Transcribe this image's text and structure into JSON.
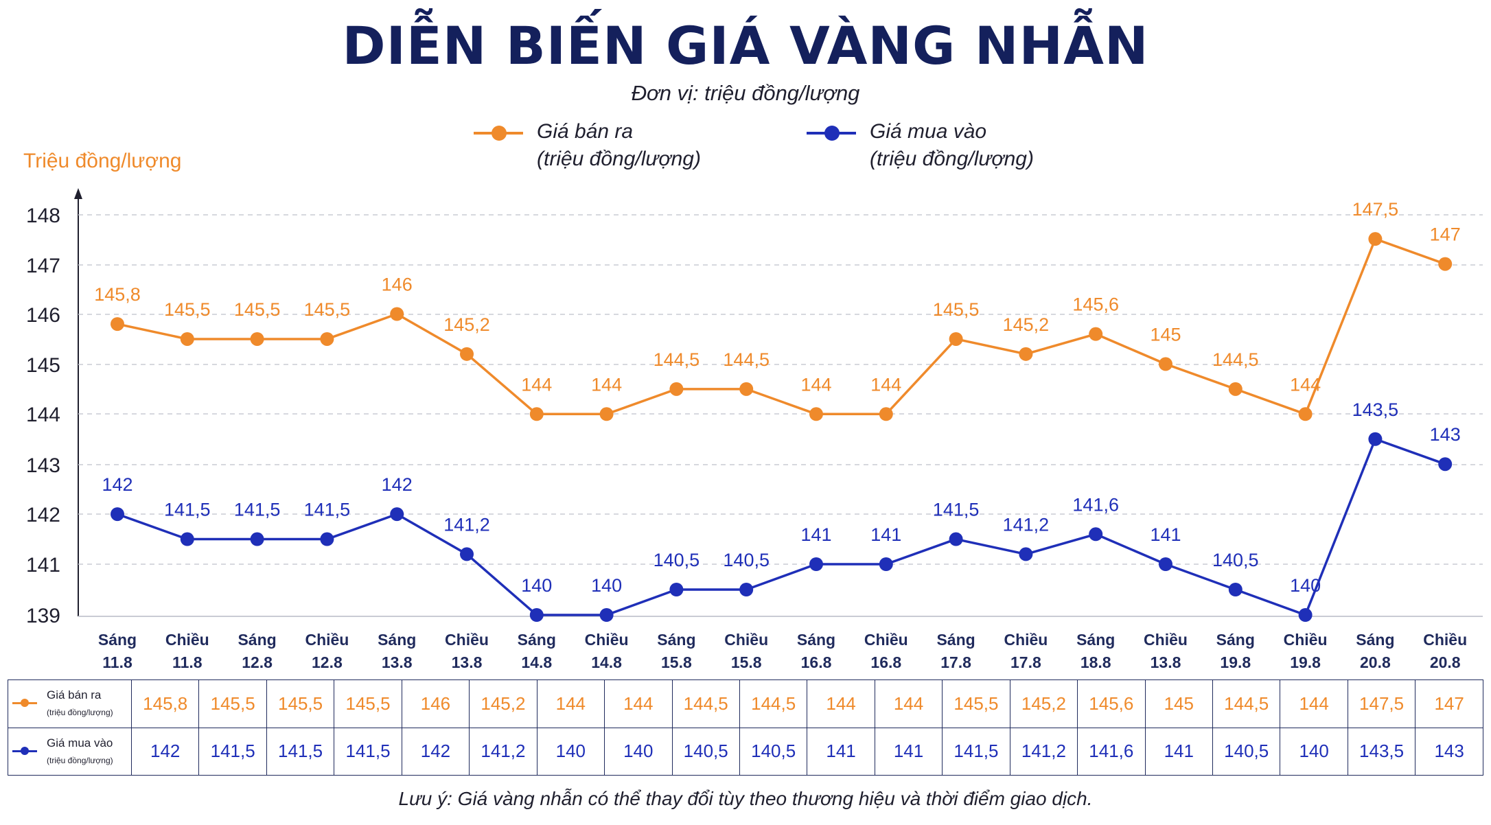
{
  "title": "DIỄN BIẾN GIÁ VÀNG NHẪN",
  "subtitle": "Đơn vị: triệu đồng/lượng",
  "note": "Lưu ý: Giá vàng nhẫn có thể thay đổi tùy theo thương hiệu và thời điểm giao dịch.",
  "legend": {
    "sell": {
      "name": "Giá bán ra",
      "unit": "(triệu đồng/lượng)"
    },
    "buy": {
      "name": "Giá mua vào",
      "unit": "(triệu đồng/lượng)"
    }
  },
  "colors": {
    "sell": "#ef8a2b",
    "buy": "#1f2fb8",
    "title": "#14205c"
  },
  "chart_data": {
    "type": "line",
    "ylabel": "Triệu đồng/lượng",
    "yticks": [
      148,
      147,
      146,
      145,
      144,
      143,
      142,
      141,
      139
    ],
    "ylim": [
      139,
      148
    ],
    "grid": true,
    "legend_position": "top",
    "categories": [
      [
        "Sáng",
        "11.8"
      ],
      [
        "Chiều",
        "11.8"
      ],
      [
        "Sáng",
        "12.8"
      ],
      [
        "Chiều",
        "12.8"
      ],
      [
        "Sáng",
        "13.8"
      ],
      [
        "Chiều",
        "13.8"
      ],
      [
        "Sáng",
        "14.8"
      ],
      [
        "Chiều",
        "14.8"
      ],
      [
        "Sáng",
        "15.8"
      ],
      [
        "Chiều",
        "15.8"
      ],
      [
        "Sáng",
        "16.8"
      ],
      [
        "Chiều",
        "16.8"
      ],
      [
        "Sáng",
        "17.8"
      ],
      [
        "Chiều",
        "17.8"
      ],
      [
        "Sáng",
        "18.8"
      ],
      [
        "Chiều",
        "13.8"
      ],
      [
        "Sáng",
        "19.8"
      ],
      [
        "Chiều",
        "19.8"
      ],
      [
        "Sáng",
        "20.8"
      ],
      [
        "Chiều",
        "20.8"
      ]
    ],
    "series": [
      {
        "name": "Giá bán ra",
        "values": [
          145.8,
          145.5,
          145.5,
          145.5,
          146,
          145.2,
          144,
          144,
          144.5,
          144.5,
          144,
          144,
          145.5,
          145.2,
          145.6,
          145,
          144.5,
          144,
          147.5,
          147
        ],
        "labels": [
          "145,8",
          "145,5",
          "145,5",
          "145,5",
          "146",
          "145,2",
          "144",
          "144",
          "144,5",
          "144,5",
          "144",
          "144",
          "145,5",
          "145,2",
          "145,6",
          "145",
          "144,5",
          "144",
          "147,5",
          "147"
        ]
      },
      {
        "name": "Giá mua vào",
        "values": [
          142,
          141.5,
          141.5,
          141.5,
          142,
          141.2,
          140,
          140,
          140.5,
          140.5,
          141,
          141,
          141.5,
          141.2,
          141.6,
          141,
          140.5,
          140,
          143.5,
          143
        ],
        "labels": [
          "142",
          "141,5",
          "141,5",
          "141,5",
          "142",
          "141,2",
          "140",
          "140",
          "140,5",
          "140,5",
          "141",
          "141",
          "141,5",
          "141,2",
          "141,6",
          "141",
          "140,5",
          "140",
          "143,5",
          "143"
        ]
      }
    ]
  }
}
